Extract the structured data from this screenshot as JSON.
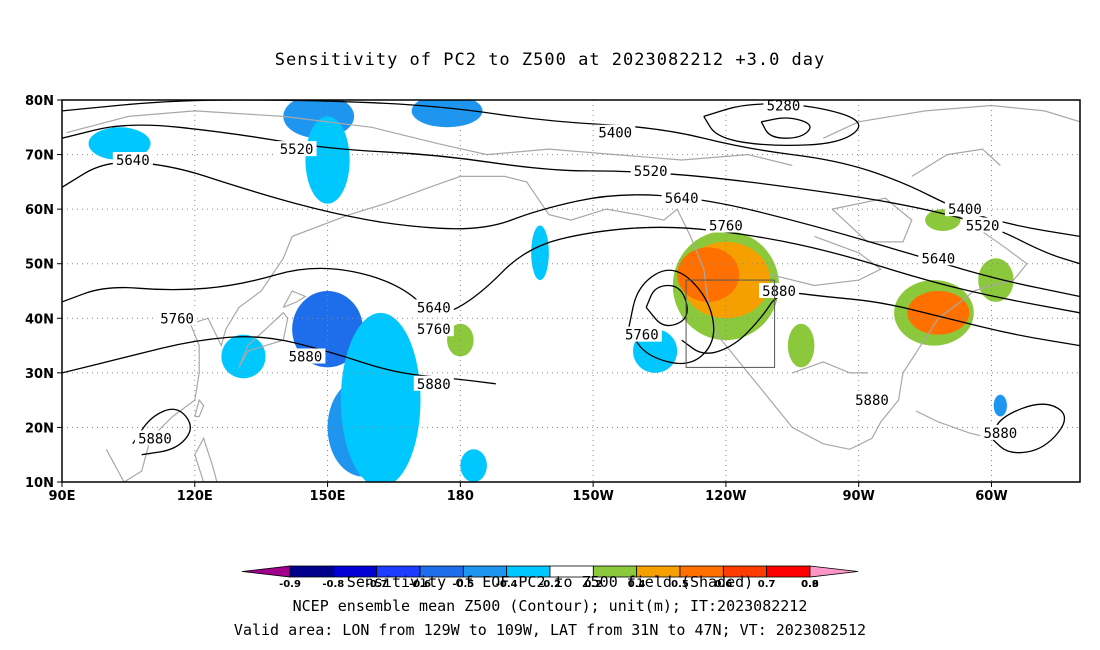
{
  "chart_data": {
    "type": "heatmap",
    "title": "Sensitivity of PC2 to Z500 at 2023082212 +3.0 day",
    "x_ticks": [
      "90E",
      "120E",
      "150E",
      "180",
      "150W",
      "120W",
      "90W",
      "60W"
    ],
    "y_ticks": [
      "10N",
      "20N",
      "30N",
      "40N",
      "50N",
      "60N",
      "70N",
      "80N"
    ],
    "lon_range": [
      90,
      320
    ],
    "lat_range": [
      10,
      80
    ],
    "grid": true,
    "colorbar": {
      "levels": [
        "-0.9",
        "-0.8",
        "-0.7",
        "-0.6",
        "-0.5",
        "-0.4",
        "-0.2",
        "0.2",
        "0.4",
        "0.5",
        "0.6",
        "0.7",
        "0.8",
        "0.9"
      ],
      "colors": [
        "#a0008c",
        "#00008c",
        "#0000d2",
        "#1e3cff",
        "#1e6eeb",
        "#1e96f0",
        "#00c8ff",
        "#ffffff",
        "#8cc83c",
        "#f5a000",
        "#ff7000",
        "#ff3c00",
        "#ff0000",
        "#ff96c8"
      ],
      "label": "Sensitivity of EOF PC2 to Z500 field (Shaded)"
    },
    "shaded_regions": [
      {
        "value": -0.5,
        "lon": 150,
        "lat": 38,
        "rx": 8,
        "ry": 7
      },
      {
        "value": -0.4,
        "lon": 158,
        "lat": 20,
        "rx": 8,
        "ry": 9
      },
      {
        "value": -0.2,
        "lon": 162,
        "lat": 25,
        "rx": 9,
        "ry": 16
      },
      {
        "value": -0.4,
        "lon": 148,
        "lat": 77,
        "rx": 8,
        "ry": 4
      },
      {
        "value": -0.4,
        "lon": 177,
        "lat": 78,
        "rx": 8,
        "ry": 3
      },
      {
        "value": -0.2,
        "lon": 103,
        "lat": 72,
        "rx": 7,
        "ry": 3
      },
      {
        "value": -0.2,
        "lon": 131,
        "lat": 33,
        "rx": 5,
        "ry": 4
      },
      {
        "value": -0.2,
        "lon": 150,
        "lat": 69,
        "rx": 5,
        "ry": 8
      },
      {
        "value": -0.2,
        "lon": 183,
        "lat": 13,
        "rx": 3,
        "ry": 3
      },
      {
        "value": -0.2,
        "lon": 224,
        "lat": 34,
        "rx": 5,
        "ry": 4
      },
      {
        "value": -0.2,
        "lon": 198,
        "lat": 52,
        "rx": 2,
        "ry": 5
      },
      {
        "value": -0.4,
        "lon": 302,
        "lat": 24,
        "rx": 1.5,
        "ry": 2
      },
      {
        "value": 0.4,
        "lon": 240,
        "lat": 46,
        "rx": 12,
        "ry": 10
      },
      {
        "value": 0.5,
        "lon": 240,
        "lat": 47,
        "rx": 10,
        "ry": 7
      },
      {
        "value": 0.6,
        "lon": 236,
        "lat": 48,
        "rx": 7,
        "ry": 5
      },
      {
        "value": 0.4,
        "lon": 257,
        "lat": 35,
        "rx": 3,
        "ry": 4
      },
      {
        "value": 0.4,
        "lon": 287,
        "lat": 41,
        "rx": 9,
        "ry": 6
      },
      {
        "value": 0.6,
        "lon": 288,
        "lat": 41,
        "rx": 7,
        "ry": 4
      },
      {
        "value": 0.4,
        "lon": 289,
        "lat": 58,
        "rx": 4,
        "ry": 2
      },
      {
        "value": 0.4,
        "lon": 301,
        "lat": 47,
        "rx": 4,
        "ry": 4
      },
      {
        "value": 0.4,
        "lon": 180,
        "lat": 36,
        "rx": 3,
        "ry": 3
      }
    ],
    "contour_labels": [
      {
        "text": "5280",
        "lon": 253,
        "lat": 79
      },
      {
        "text": "5400",
        "lon": 215,
        "lat": 74
      },
      {
        "text": "5400",
        "lon": 294,
        "lat": 60
      },
      {
        "text": "5520",
        "lon": 143,
        "lat": 71
      },
      {
        "text": "5520",
        "lon": 223,
        "lat": 67
      },
      {
        "text": "5520",
        "lon": 298,
        "lat": 57
      },
      {
        "text": "5640",
        "lon": 106,
        "lat": 69
      },
      {
        "text": "5640",
        "lon": 230,
        "lat": 62
      },
      {
        "text": "5640",
        "lon": 288,
        "lat": 51
      },
      {
        "text": "5640",
        "lon": 174,
        "lat": 42
      },
      {
        "text": "5760",
        "lon": 240,
        "lat": 57
      },
      {
        "text": "5760",
        "lon": 116,
        "lat": 40
      },
      {
        "text": "5760",
        "lon": 174,
        "lat": 38
      },
      {
        "text": "5760",
        "lon": 221,
        "lat": 37
      },
      {
        "text": "5880",
        "lon": 252,
        "lat": 45
      },
      {
        "text": "5880",
        "lon": 145,
        "lat": 33
      },
      {
        "text": "5880",
        "lon": 174,
        "lat": 28
      },
      {
        "text": "5880",
        "lon": 111,
        "lat": 18
      },
      {
        "text": "5880",
        "lon": 273,
        "lat": 25
      },
      {
        "text": "5880",
        "lon": 302,
        "lat": 19
      }
    ],
    "contour_lines": [
      {
        "value": 5280,
        "points": [
          [
            235,
            77
          ],
          [
            245,
            79.5
          ],
          [
            260,
            79
          ],
          [
            272,
            76
          ],
          [
            266,
            72
          ],
          [
            250,
            71.5
          ],
          [
            238,
            73
          ],
          [
            235,
            77
          ]
        ]
      },
      {
        "value": 5340,
        "points": [
          [
            248,
            76
          ],
          [
            254,
            77
          ],
          [
            260,
            75.5
          ],
          [
            257,
            73
          ],
          [
            250,
            73
          ],
          [
            248,
            76
          ]
        ]
      },
      {
        "value": 5400,
        "points": [
          [
            90,
            78
          ],
          [
            115,
            80
          ],
          [
            145,
            80
          ],
          [
            175,
            79
          ],
          [
            200,
            76
          ],
          [
            225,
            75
          ],
          [
            245,
            71
          ],
          [
            265,
            69
          ],
          [
            280,
            65
          ],
          [
            292,
            60
          ],
          [
            305,
            57
          ],
          [
            320,
            55
          ]
        ]
      },
      {
        "value": 5520,
        "points": [
          [
            90,
            73
          ],
          [
            105,
            76
          ],
          [
            128,
            74
          ],
          [
            150,
            71
          ],
          [
            175,
            70
          ],
          [
            200,
            67
          ],
          [
            218,
            67
          ],
          [
            235,
            66
          ],
          [
            255,
            64
          ],
          [
            280,
            61
          ],
          [
            300,
            57
          ],
          [
            312,
            52
          ],
          [
            320,
            50
          ]
        ]
      },
      {
        "value": 5640,
        "points": [
          [
            90,
            64
          ],
          [
            100,
            69
          ],
          [
            115,
            68
          ],
          [
            130,
            64
          ],
          [
            147,
            60
          ],
          [
            165,
            57
          ],
          [
            185,
            56
          ],
          [
            198,
            60
          ],
          [
            215,
            63
          ],
          [
            235,
            62
          ],
          [
            260,
            57
          ],
          [
            285,
            51
          ],
          [
            302,
            47
          ],
          [
            320,
            44
          ]
        ]
      },
      {
        "value": 5760,
        "points": [
          [
            90,
            43
          ],
          [
            100,
            46
          ],
          [
            115,
            45
          ],
          [
            130,
            46
          ],
          [
            147,
            50
          ],
          [
            165,
            47
          ],
          [
            175,
            40
          ],
          [
            184,
            44
          ],
          [
            195,
            53
          ],
          [
            210,
            56
          ],
          [
            228,
            57
          ],
          [
            248,
            55
          ],
          [
            265,
            52
          ],
          [
            285,
            47
          ],
          [
            300,
            44
          ],
          [
            320,
            41
          ]
        ]
      },
      {
        "value": 5880,
        "points": [
          [
            90,
            30
          ],
          [
            105,
            33
          ],
          [
            120,
            36
          ],
          [
            135,
            37
          ],
          [
            150,
            34
          ],
          [
            165,
            30
          ],
          [
            178,
            29
          ],
          [
            188,
            28
          ]
        ]
      },
      {
        "value": 5880,
        "points": [
          [
            230,
            36
          ],
          [
            235,
            33
          ],
          [
            242,
            35
          ],
          [
            248,
            40
          ],
          [
            252,
            45
          ],
          [
            262,
            44
          ],
          [
            275,
            43
          ],
          [
            290,
            40
          ],
          [
            305,
            37
          ],
          [
            320,
            35
          ]
        ]
      },
      {
        "value": 5760,
        "points": [
          [
            218,
            38
          ],
          [
            222,
            33
          ],
          [
            232,
            31
          ],
          [
            238,
            36
          ],
          [
            236,
            44
          ],
          [
            228,
            50
          ],
          [
            220,
            46
          ],
          [
            218,
            38
          ]
        ]
      },
      {
        "value": 5700,
        "points": [
          [
            222,
            42
          ],
          [
            226,
            38
          ],
          [
            232,
            40
          ],
          [
            230,
            46
          ],
          [
            224,
            46
          ],
          [
            222,
            42
          ]
        ]
      },
      {
        "value": 5880,
        "points": [
          [
            106,
            17
          ],
          [
            110,
            22
          ],
          [
            116,
            24
          ],
          [
            120,
            20
          ],
          [
            116,
            16
          ],
          [
            108,
            15
          ]
        ]
      },
      {
        "value": 5880,
        "points": [
          [
            300,
            18
          ],
          [
            302,
            22
          ],
          [
            312,
            25
          ],
          [
            318,
            22
          ],
          [
            312,
            16
          ],
          [
            304,
            15
          ],
          [
            300,
            18
          ]
        ]
      }
    ],
    "valid_box": {
      "lon_min": 231,
      "lon_max": 251,
      "lat_min": 31,
      "lat_max": 47
    }
  },
  "footer": {
    "line1": "NCEP ensemble mean Z500 (Contour); unit(m); IT:2023082212",
    "line2": "Valid area: LON from 129W to 109W, LAT from 31N to 47N; VT: 2023082512"
  }
}
